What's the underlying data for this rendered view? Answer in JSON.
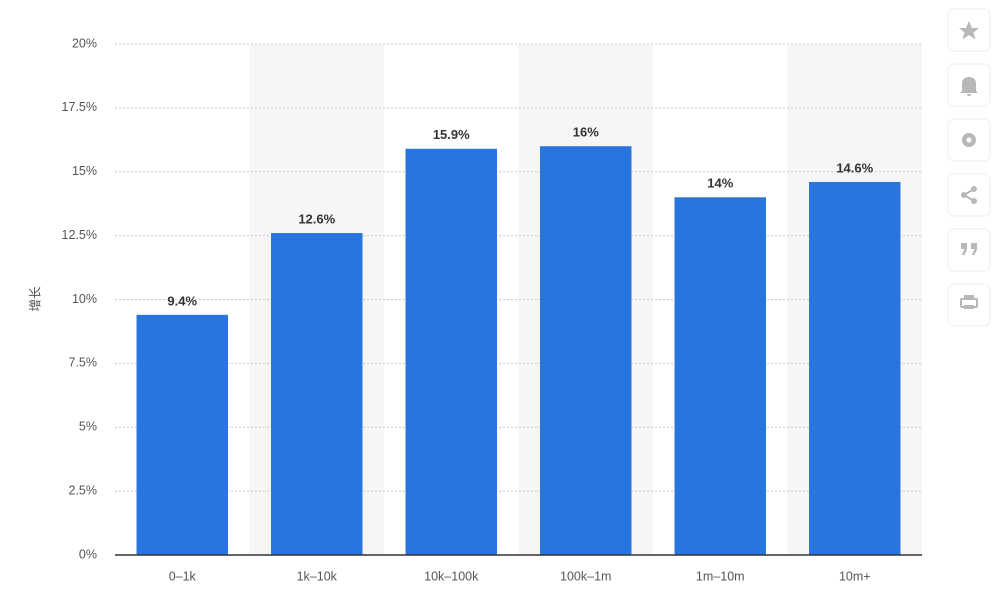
{
  "chart_data": {
    "type": "bar",
    "y_label": "增长",
    "categories": [
      "0–1k",
      "1k–10k",
      "10k–100k",
      "100k–1m",
      "1m–10m",
      "10m+"
    ],
    "values": [
      9.4,
      12.6,
      15.9,
      16,
      14,
      14.6
    ],
    "value_labels": [
      "9.4%",
      "12.6%",
      "15.9%",
      "16%",
      "14%",
      "14.6%"
    ],
    "color": "#2876dd",
    "ylim": [
      0,
      20
    ],
    "yticks": [
      {
        "value": 0,
        "label": "0%"
      },
      {
        "value": 2.5,
        "label": "2.5%"
      },
      {
        "value": 5,
        "label": "5%"
      },
      {
        "value": 7.5,
        "label": "7.5%"
      },
      {
        "value": 10,
        "label": "10%"
      },
      {
        "value": 12.5,
        "label": "12.5%"
      },
      {
        "value": 15,
        "label": "15%"
      },
      {
        "value": 17.5,
        "label": "17.5%"
      },
      {
        "value": 20,
        "label": "20%"
      }
    ],
    "grid": true
  }
}
